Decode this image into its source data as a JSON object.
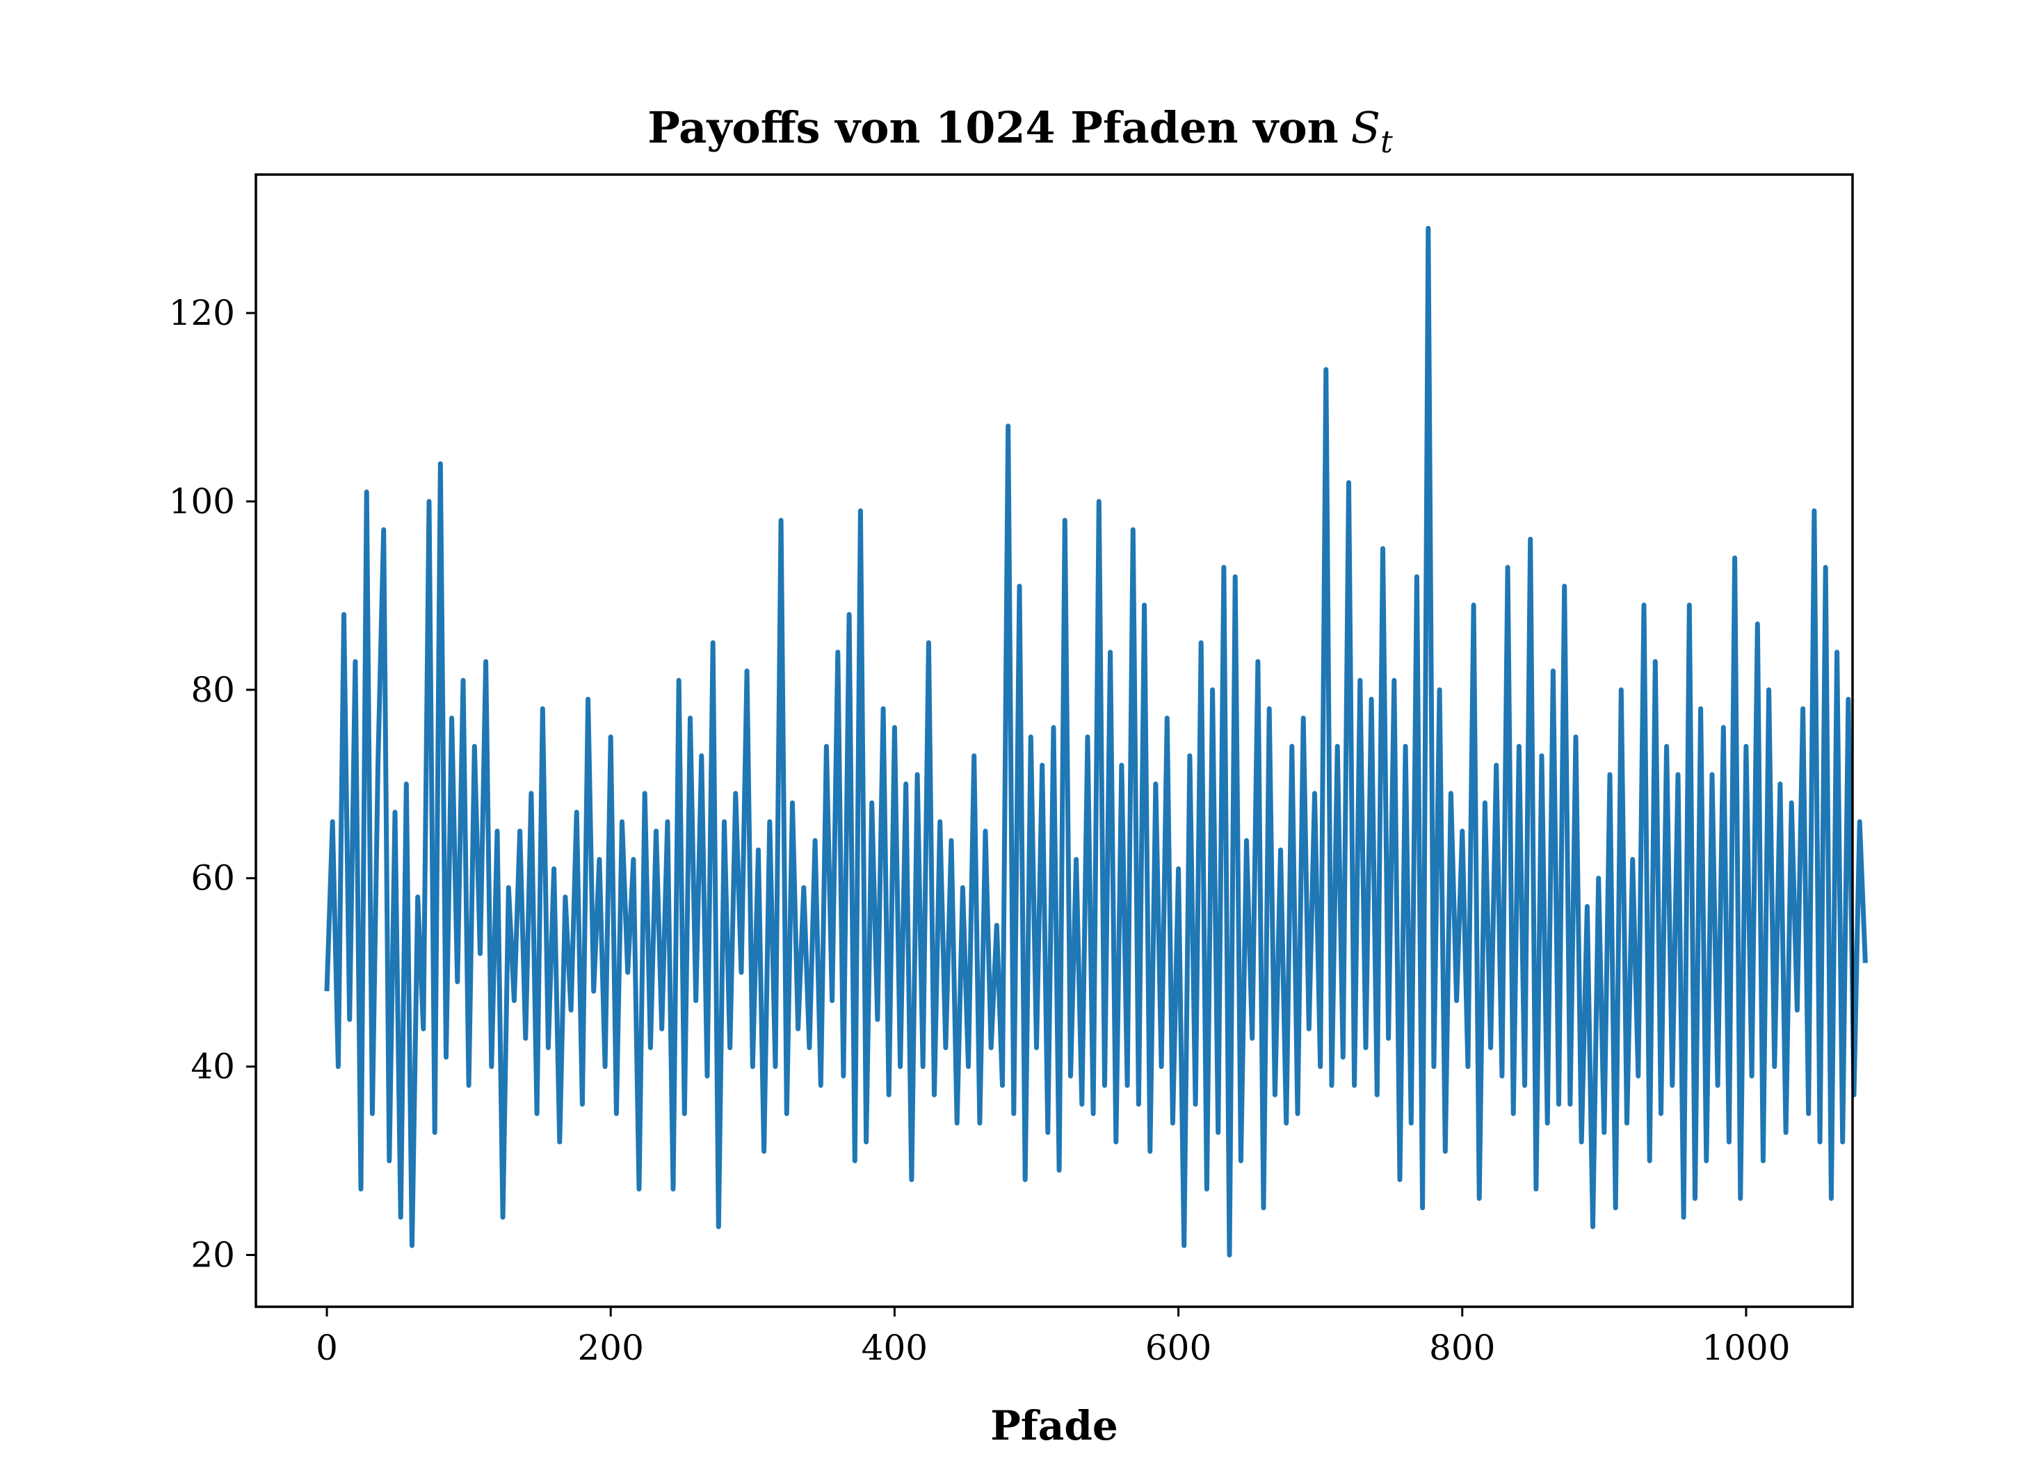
{
  "chart_data": {
    "type": "line",
    "title": "Payoffs von 1024 Pfaden von",
    "title_math": "S",
    "title_math_sub": "t",
    "xlabel": "Pfade",
    "ylabel": "",
    "xlim": [
      -50,
      1075
    ],
    "ylim": [
      14.5,
      134.7
    ],
    "xticks": [
      0,
      200,
      400,
      600,
      800,
      1000
    ],
    "yticks": [
      20,
      40,
      60,
      80,
      100,
      120
    ],
    "grid": false,
    "color": "#1f77b4",
    "series": [
      {
        "sample_step": 4,
        "x_start": 0,
        "values": [
          48,
          66,
          40,
          88,
          45,
          83,
          27,
          101,
          35,
          72,
          97,
          30,
          67,
          24,
          70,
          21,
          58,
          44,
          100,
          33,
          104,
          41,
          77,
          49,
          81,
          38,
          74,
          52,
          83,
          40,
          65,
          24,
          59,
          47,
          65,
          43,
          69,
          35,
          78,
          42,
          61,
          32,
          58,
          46,
          67,
          36,
          79,
          48,
          62,
          40,
          75,
          35,
          66,
          50,
          62,
          27,
          69,
          42,
          65,
          44,
          66,
          27,
          81,
          35,
          77,
          47,
          73,
          39,
          85,
          23,
          66,
          42,
          69,
          50,
          82,
          40,
          63,
          31,
          66,
          40,
          98,
          35,
          68,
          44,
          59,
          42,
          64,
          38,
          74,
          47,
          84,
          39,
          88,
          30,
          99,
          32,
          68,
          45,
          78,
          37,
          76,
          40,
          70,
          28,
          71,
          40,
          85,
          37,
          66,
          42,
          64,
          34,
          59,
          40,
          73,
          34,
          65,
          42,
          55,
          38,
          108,
          35,
          91,
          28,
          75,
          42,
          72,
          33,
          76,
          29,
          98,
          39,
          62,
          36,
          75,
          35,
          100,
          38,
          84,
          32,
          72,
          38,
          97,
          36,
          89,
          31,
          70,
          40,
          77,
          34,
          61,
          21,
          73,
          36,
          85,
          27,
          80,
          33,
          93,
          20,
          92,
          30,
          64,
          43,
          83,
          25,
          78,
          37,
          63,
          34,
          74,
          35,
          77,
          44,
          69,
          40,
          114,
          38,
          74,
          41,
          102,
          38,
          81,
          42,
          79,
          37,
          95,
          43,
          81,
          28,
          74,
          34,
          92,
          25,
          129,
          40,
          80,
          31,
          69,
          47,
          65,
          40,
          89,
          26,
          68,
          42,
          72,
          39,
          93,
          35,
          74,
          38,
          96,
          27,
          73,
          34,
          82,
          36,
          91,
          36,
          75,
          32,
          57,
          23,
          60,
          33,
          71,
          25,
          80,
          34,
          62,
          39,
          89,
          30,
          83,
          35,
          74,
          38,
          71,
          24,
          89,
          26,
          78,
          30,
          71,
          38,
          76,
          32,
          94,
          26,
          74,
          39,
          87,
          30,
          80,
          40,
          70,
          33,
          68,
          46,
          78,
          35,
          99,
          32,
          93,
          26,
          84,
          32,
          79,
          37,
          66,
          51
        ]
      }
    ]
  }
}
